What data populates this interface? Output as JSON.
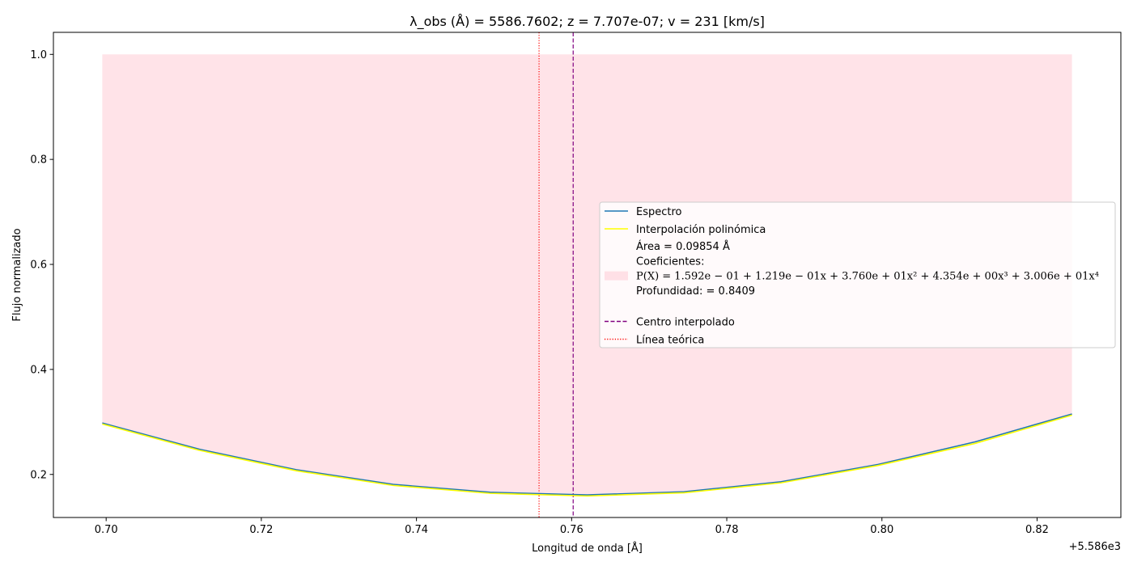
{
  "chart_data": {
    "type": "line",
    "title": "λ_obs (Å) = 5586.7602; z = 7.707e-07; v = 231 [km/s]",
    "xlabel": "Longitud de onda [Å]",
    "ylabel": "Flujo normalizado",
    "x_offset_label": "+5.586e3",
    "xlim": [
      0.6932,
      0.8308
    ],
    "ylim": [
      0.118,
      1.042
    ],
    "x_ticks": [
      0.7,
      0.72,
      0.74,
      0.76,
      0.78,
      0.8,
      0.82
    ],
    "x_tick_labels": [
      "0.70",
      "0.72",
      "0.74",
      "0.76",
      "0.78",
      "0.80",
      "0.82"
    ],
    "y_ticks": [
      0.2,
      0.4,
      0.6,
      0.8,
      1.0
    ],
    "y_tick_labels": [
      "0.2",
      "0.4",
      "0.6",
      "0.8",
      "1.0"
    ],
    "series": [
      {
        "name": "Espectro",
        "color": "#1f77b4",
        "x": [
          0.6995,
          0.712,
          0.7245,
          0.737,
          0.7495,
          0.762,
          0.7745,
          0.787,
          0.7995,
          0.812,
          0.8245
        ],
        "values": [
          0.298,
          0.248,
          0.209,
          0.181,
          0.166,
          0.161,
          0.167,
          0.186,
          0.219,
          0.262,
          0.315
        ]
      },
      {
        "name": "Interpolación polinómica",
        "color": "#ffff00",
        "x": [
          0.6995,
          0.712,
          0.7245,
          0.737,
          0.7495,
          0.762,
          0.7745,
          0.787,
          0.7995,
          0.812,
          0.8245
        ],
        "values": [
          0.296,
          0.246,
          0.207,
          0.179,
          0.164,
          0.159,
          0.165,
          0.184,
          0.217,
          0.259,
          0.313
        ]
      }
    ],
    "fill_region": {
      "x_start": 0.6995,
      "x_end": 0.8245,
      "upper": 1.0,
      "color": "#ffc0cb",
      "alpha": 0.45
    },
    "vertical_lines": [
      {
        "name": "Centro interpolado",
        "x": 0.7602,
        "color": "#800080",
        "style": "dashed"
      },
      {
        "name": "Línea teórica",
        "x": 0.7558,
        "color": "#ff0000",
        "style": "dotted"
      }
    ],
    "legend": {
      "placement": "center-right",
      "entries": [
        {
          "key": "line",
          "color": "#1f77b4",
          "style": "solid",
          "text": "Espectro"
        },
        {
          "key": "line",
          "color": "#ffff00",
          "style": "solid",
          "text": "Interpolación polinómica"
        },
        {
          "key": "fill",
          "color": "#ffc0cb",
          "lines": [
            "Área = 0.09854 Å",
            "Coeficientes:",
            " P(X) = 1.592e − 01 + 1.219e − 01x + 3.760e + 01x² + 4.354e + 00x³ + 3.006e + 01x⁴",
            "Profundidad: = 0.8409",
            ""
          ]
        },
        {
          "key": "line",
          "color": "#800080",
          "style": "dashed",
          "text": "Centro interpolado"
        },
        {
          "key": "line",
          "color": "#ff0000",
          "style": "dotted",
          "text": "Línea teórica"
        }
      ]
    }
  }
}
